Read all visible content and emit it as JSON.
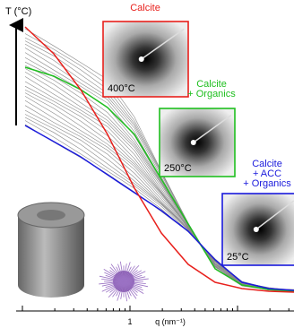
{
  "axis": {
    "y_label": "T (°C)",
    "x_label": "q (nm⁻¹)",
    "x_tick": "1"
  },
  "insets": [
    {
      "title_lines": [
        "Calcite"
      ],
      "temperature": "400°C",
      "color": "#e8201c"
    },
    {
      "title_lines": [
        "Calcite",
        "+ Organics"
      ],
      "temperature": "250°C",
      "color": "#1fbf1f"
    },
    {
      "title_lines": [
        "Calcite",
        "+ ACC",
        "+ Organics"
      ],
      "temperature": "25°C",
      "color": "#1a1adc"
    }
  ]
}
